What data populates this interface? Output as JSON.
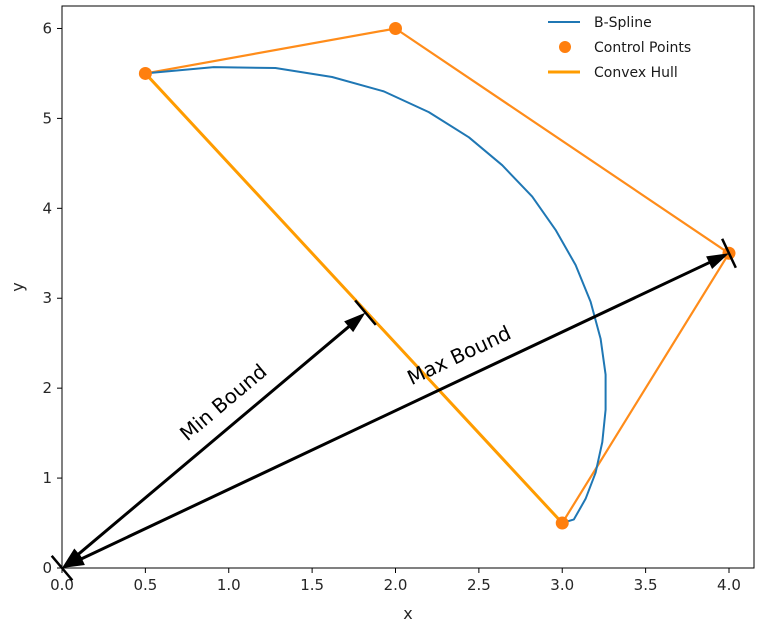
{
  "chart_data": {
    "type": "line",
    "title": "",
    "xlabel": "x",
    "ylabel": "y",
    "xlim": [
      0.0,
      4.15
    ],
    "ylim": [
      0.0,
      6.25
    ],
    "xticks": [
      0.0,
      0.5,
      1.0,
      1.5,
      2.0,
      2.5,
      3.0,
      3.5,
      4.0
    ],
    "xtick_labels": [
      "0.0",
      "0.5",
      "1.0",
      "1.5",
      "2.0",
      "2.5",
      "3.0",
      "3.5",
      "4.0"
    ],
    "yticks": [
      0,
      1,
      2,
      3,
      4,
      5,
      6
    ],
    "ytick_labels": [
      "0",
      "1",
      "2",
      "3",
      "4",
      "5",
      "6"
    ],
    "grid": false,
    "legend_position": "top-right",
    "colors": {
      "bspline": "#1f77b4",
      "control": "#ff7f0e",
      "hull": "#ff9c00",
      "arrow": "#000000"
    },
    "series": [
      {
        "name": "B-Spline",
        "kind": "line",
        "x": [
          0.5,
          0.91,
          1.28,
          1.62,
          1.93,
          2.2,
          2.44,
          2.64,
          2.82,
          2.96,
          3.08,
          3.17,
          3.23,
          3.26,
          3.26,
          3.24,
          3.2,
          3.14,
          3.07,
          3.0
        ],
        "y": [
          5.5,
          5.57,
          5.56,
          5.46,
          5.3,
          5.07,
          4.79,
          4.48,
          4.13,
          3.76,
          3.37,
          2.96,
          2.55,
          2.15,
          1.76,
          1.4,
          1.06,
          0.77,
          0.54,
          0.5
        ]
      },
      {
        "name": "Control Points",
        "kind": "scatter",
        "x": [
          0.5,
          2.0,
          4.0,
          3.0
        ],
        "y": [
          5.5,
          6.0,
          3.5,
          0.5
        ]
      },
      {
        "name": "Convex Hull",
        "kind": "polygon",
        "x": [
          0.5,
          2.0,
          4.0,
          3.0,
          0.5
        ],
        "y": [
          5.5,
          6.0,
          3.5,
          0.5,
          5.5
        ]
      }
    ],
    "annotations": [
      {
        "label": "Min Bound",
        "from": [
          0.0,
          0.0
        ],
        "to": [
          1.82,
          2.84
        ]
      },
      {
        "label": "Max Bound",
        "from": [
          0.0,
          0.0
        ],
        "to": [
          4.0,
          3.5
        ]
      }
    ]
  }
}
